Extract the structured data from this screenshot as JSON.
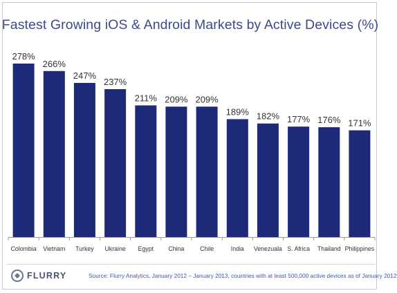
{
  "title": "Fastest Growing iOS & Android Markets by Active Devices (%)",
  "source": "Source: Flurry Analytics, January 2012 – January 2013, countries with at least 500,000 active devices as of January 2012",
  "logo_text": "FLURRY",
  "logo_icon": "flurry-logo-icon",
  "colors": {
    "bar": "#1c2a78",
    "label": "#333333",
    "axis": "#9a9a9a"
  },
  "chart_data": {
    "type": "bar",
    "title": "Fastest Growing iOS & Android Markets by Active Devices (%)",
    "xlabel": "",
    "ylabel": "",
    "categories": [
      "Colombia",
      "Vietnam",
      "Turkey",
      "Ukraine",
      "Egypt",
      "China",
      "Chile",
      "India",
      "Venezuala",
      "S. Africa",
      "Thailand",
      "Philippines"
    ],
    "values": [
      278,
      266,
      247,
      237,
      211,
      209,
      209,
      189,
      182,
      177,
      176,
      171
    ],
    "value_labels": [
      "278%",
      "266%",
      "247%",
      "237%",
      "211%",
      "209%",
      "209%",
      "189%",
      "182%",
      "177%",
      "176%",
      "171%"
    ],
    "ylim": [
      0,
      278
    ],
    "grid": false,
    "legend": "none"
  }
}
